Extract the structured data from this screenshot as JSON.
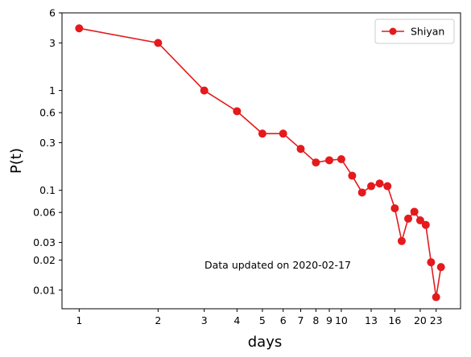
{
  "chart_data": {
    "type": "line",
    "xlabel": "days",
    "ylabel": "P(t)",
    "x_scale": "log",
    "y_scale": "log",
    "xlim": [
      0.86,
      28.5
    ],
    "ylim": [
      0.0065,
      6
    ],
    "xticks": [
      1,
      2,
      3,
      4,
      5,
      6,
      7,
      8,
      9,
      10,
      13,
      16,
      20,
      23
    ],
    "xtick_labels": [
      "1",
      "2",
      "3",
      "4",
      "5",
      "6",
      "7",
      "8",
      "9",
      "10",
      "13",
      "16",
      "20",
      "23"
    ],
    "yticks": [
      0.01,
      0.02,
      0.03,
      0.06,
      0.1,
      0.3,
      0.6,
      1,
      3,
      6
    ],
    "ytick_labels": [
      "0.01",
      "0.02",
      "0.03",
      "0.06",
      "0.1",
      "0.3",
      "0.6",
      "1",
      "3",
      "6"
    ],
    "grid": false,
    "legend_position": "top-right",
    "series": [
      {
        "name": "Shiyan",
        "color": "#e41a1c",
        "marker": "circle",
        "x": [
          1,
          2,
          3,
          4,
          5,
          6,
          7,
          8,
          9,
          10,
          11,
          12,
          13,
          14,
          15,
          16,
          17,
          18,
          19,
          20,
          21,
          22,
          23,
          24
        ],
        "y": [
          4.2,
          3.0,
          1.0,
          0.62,
          0.37,
          0.37,
          0.26,
          0.19,
          0.2,
          0.205,
          0.14,
          0.095,
          0.11,
          0.117,
          0.11,
          0.066,
          0.031,
          0.052,
          0.061,
          0.05,
          0.045,
          0.019,
          0.0085,
          0.017
        ]
      }
    ],
    "annotations": [
      {
        "text": "Data updated on 2020-02-17"
      }
    ]
  }
}
